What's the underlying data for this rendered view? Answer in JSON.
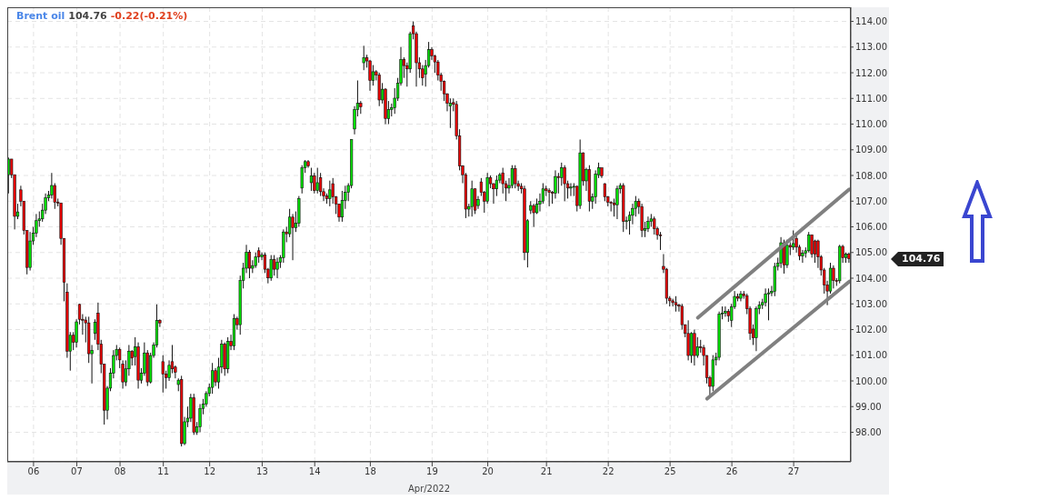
{
  "chart_data": {
    "type": "candlestick",
    "title": "Brent oil",
    "xlabel": "Apr/2022",
    "annotations": [
      "104.76",
      "-0.22(-0.21%)",
      "104.76"
    ],
    "ylim": [
      96.85,
      114.55
    ],
    "yticks": [
      {
        "value": 98,
        "label": "98.00"
      },
      {
        "value": 99,
        "label": "99.00"
      },
      {
        "value": 100,
        "label": "100.00"
      },
      {
        "value": 101,
        "label": "101.00"
      },
      {
        "value": 102,
        "label": "102.00"
      },
      {
        "value": 103,
        "label": "103.00"
      },
      {
        "value": 104,
        "label": "104.00"
      },
      {
        "value": 105,
        "label": "105.00"
      },
      {
        "value": 106,
        "label": "106.00"
      },
      {
        "value": 107,
        "label": "107.00"
      },
      {
        "value": 108,
        "label": "108.00"
      },
      {
        "value": 109,
        "label": "109.00"
      },
      {
        "value": 110,
        "label": "110.00"
      },
      {
        "value": 111,
        "label": "111.00"
      },
      {
        "value": 112,
        "label": "112.00"
      },
      {
        "value": 113,
        "label": "113.00"
      },
      {
        "value": 114,
        "label": "114.00"
      }
    ],
    "grid": true,
    "categories": [
      null,
      null,
      null,
      null,
      null,
      null,
      null,
      null,
      "06",
      null,
      null,
      null,
      null,
      null,
      null,
      null,
      null,
      null,
      null,
      null,
      null,
      null,
      "07",
      null,
      null,
      null,
      null,
      null,
      null,
      null,
      null,
      null,
      null,
      null,
      null,
      null,
      "08",
      null,
      null,
      null,
      null,
      null,
      null,
      null,
      null,
      null,
      null,
      null,
      null,
      null,
      "11",
      null,
      null,
      null,
      null,
      null,
      null,
      null,
      null,
      null,
      null,
      null,
      null,
      null,
      null,
      "12",
      null,
      null,
      null,
      null,
      null,
      null,
      null,
      null,
      null,
      null,
      null,
      null,
      null,
      null,
      null,
      null,
      "13",
      null,
      null,
      null,
      null,
      null,
      null,
      null,
      null,
      null,
      null,
      null,
      null,
      null,
      null,
      null,
      null,
      "14",
      null,
      null,
      null,
      null,
      null,
      null,
      null,
      null,
      null,
      null,
      null,
      null,
      null,
      null,
      null,
      null,
      null,
      "18",
      null,
      null,
      null,
      null,
      null,
      null,
      null,
      null,
      null,
      null,
      null,
      null,
      null,
      null,
      null,
      null,
      null,
      null,
      null,
      "19",
      null,
      null,
      null,
      null,
      null,
      null,
      null,
      null,
      null,
      null,
      null,
      null,
      null,
      null,
      null,
      null,
      null,
      "20",
      null,
      null,
      null,
      null,
      null,
      null,
      null,
      null,
      null,
      null,
      null,
      null,
      null,
      null,
      null,
      null,
      null,
      null,
      "21",
      null,
      null,
      null,
      null,
      null,
      null,
      null,
      null,
      null,
      null,
      null,
      null,
      null,
      null,
      null,
      null,
      null,
      null,
      null,
      "22",
      null,
      null,
      null,
      null,
      null,
      null,
      null,
      null,
      null,
      null,
      null,
      null,
      null,
      null,
      null,
      null,
      null,
      null,
      null,
      "25",
      null,
      null,
      null,
      null,
      null,
      null,
      null,
      null,
      null,
      null,
      null,
      null,
      null,
      null,
      null,
      null,
      null,
      null,
      null,
      "26",
      null,
      null,
      null,
      null,
      null,
      null,
      null,
      null,
      null,
      null,
      null,
      null,
      null,
      null,
      null,
      null,
      null,
      null,
      null,
      "27",
      null,
      null,
      null,
      null,
      null,
      null,
      null,
      null,
      null,
      null,
      null,
      null,
      null,
      null,
      null,
      null,
      null,
      null
    ],
    "ohlc": [
      [
        108.03,
        108.7,
        107.3,
        108.64
      ],
      [
        108.64,
        108.64,
        107.9,
        108.03
      ],
      [
        108.03,
        108.03,
        105.9,
        106.41
      ],
      [
        106.41,
        106.9,
        106.3,
        106.58
      ],
      [
        107.44,
        107.6,
        106.8,
        107.0
      ],
      [
        107.0,
        107.0,
        105.7,
        105.86
      ],
      [
        105.86,
        105.86,
        104.15,
        104.42
      ],
      [
        104.42,
        105.8,
        104.3,
        105.45
      ],
      [
        105.45,
        106.0,
        105.3,
        105.76
      ],
      [
        105.76,
        106.5,
        105.6,
        106.24
      ],
      [
        106.24,
        106.6,
        106.0,
        106.31
      ],
      [
        106.31,
        106.9,
        106.2,
        106.65
      ],
      [
        106.65,
        107.3,
        106.5,
        107.13
      ],
      [
        107.13,
        107.4,
        107.0,
        107.24
      ],
      [
        107.24,
        108.1,
        107.1,
        107.61
      ],
      [
        107.61,
        107.7,
        106.7,
        106.96
      ],
      [
        106.96,
        107.1,
        106.8,
        106.93
      ],
      [
        106.93,
        106.93,
        105.3,
        105.55
      ],
      [
        105.55,
        105.55,
        103.1,
        103.84
      ],
      [
        103.46,
        103.8,
        100.9,
        101.16
      ],
      [
        101.16,
        101.9,
        100.4,
        101.78
      ],
      [
        101.78,
        101.9,
        101.2,
        101.5
      ],
      [
        101.5,
        102.4,
        101.3,
        102.3
      ],
      [
        102.98,
        103.0,
        102.2,
        102.4
      ],
      [
        102.4,
        102.6,
        101.8,
        102.37
      ],
      [
        102.37,
        102.5,
        101.5,
        102.26
      ],
      [
        102.26,
        102.5,
        100.7,
        101.06
      ],
      [
        101.06,
        101.4,
        99.9,
        101.19
      ],
      [
        101.85,
        102.4,
        101.6,
        102.29
      ],
      [
        102.64,
        103.05,
        101.2,
        101.43
      ],
      [
        101.43,
        101.6,
        100.3,
        100.65
      ],
      [
        100.65,
        100.65,
        98.3,
        98.86
      ],
      [
        98.86,
        99.8,
        98.5,
        99.72
      ],
      [
        99.72,
        100.5,
        99.6,
        100.3
      ],
      [
        100.3,
        101.2,
        100.1,
        100.99
      ],
      [
        100.99,
        101.4,
        100.8,
        101.23
      ],
      [
        101.23,
        101.3,
        100.5,
        100.82
      ],
      [
        100.65,
        100.8,
        99.7,
        99.96
      ],
      [
        99.96,
        100.8,
        99.8,
        100.47
      ],
      [
        100.47,
        101.4,
        100.2,
        101.16
      ],
      [
        101.16,
        101.2,
        100.6,
        100.89
      ],
      [
        100.95,
        101.7,
        100.6,
        101.33
      ],
      [
        101.33,
        101.5,
        99.7,
        100.03
      ],
      [
        100.03,
        100.5,
        99.9,
        100.3
      ],
      [
        100.3,
        101.5,
        100.2,
        101.09
      ],
      [
        101.09,
        101.2,
        99.8,
        99.96
      ],
      [
        99.96,
        101.1,
        99.9,
        100.99
      ],
      [
        100.99,
        101.5,
        100.9,
        101.4
      ],
      [
        101.4,
        102.98,
        101.3,
        102.36
      ],
      [
        102.36,
        102.4,
        102.1,
        102.26
      ],
      [
        100.75,
        101.0,
        99.55,
        100.27
      ],
      [
        100.27,
        100.4,
        99.7,
        100.13
      ],
      [
        100.13,
        100.8,
        100.0,
        100.61
      ],
      [
        100.75,
        101.4,
        100.3,
        100.47
      ],
      [
        100.54,
        100.6,
        100.1,
        100.34
      ],
      [
        99.86,
        100.1,
        99.6,
        100.03
      ],
      [
        100.06,
        100.2,
        97.45,
        97.56
      ],
      [
        97.56,
        98.6,
        97.5,
        98.41
      ],
      [
        98.41,
        99.0,
        98.2,
        98.55
      ],
      [
        98.55,
        99.5,
        98.4,
        99.34
      ],
      [
        99.34,
        99.5,
        97.9,
        98.0
      ],
      [
        98.0,
        98.4,
        97.9,
        98.21
      ],
      [
        98.21,
        99.1,
        98.0,
        98.93
      ],
      [
        98.93,
        99.3,
        98.7,
        99.1
      ],
      [
        99.1,
        99.6,
        99.0,
        99.51
      ],
      [
        99.51,
        99.9,
        99.4,
        99.75
      ],
      [
        99.75,
        100.7,
        99.5,
        100.4
      ],
      [
        100.4,
        100.5,
        99.8,
        99.96
      ],
      [
        99.96,
        100.9,
        99.7,
        100.54
      ],
      [
        100.54,
        101.6,
        100.3,
        101.43
      ],
      [
        101.43,
        101.5,
        100.2,
        100.47
      ],
      [
        100.47,
        101.7,
        100.3,
        101.54
      ],
      [
        101.54,
        101.8,
        101.2,
        101.37
      ],
      [
        101.37,
        102.6,
        101.2,
        102.43
      ],
      [
        102.43,
        102.5,
        102.0,
        102.19
      ],
      [
        102.19,
        104.1,
        101.8,
        103.91
      ],
      [
        103.91,
        104.6,
        103.6,
        104.39
      ],
      [
        104.39,
        105.3,
        104.2,
        105.01
      ],
      [
        105.01,
        105.1,
        104.0,
        104.39
      ],
      [
        104.39,
        104.7,
        104.2,
        104.49
      ],
      [
        104.49,
        105.0,
        104.4,
        104.83
      ],
      [
        105.07,
        105.2,
        104.6,
        104.83
      ],
      [
        104.83,
        105.0,
        104.7,
        104.9
      ],
      [
        104.9,
        105.0,
        104.2,
        104.35
      ],
      [
        104.35,
        104.4,
        103.8,
        104.01
      ],
      [
        104.01,
        104.9,
        103.9,
        104.73
      ],
      [
        104.73,
        104.9,
        104.1,
        104.35
      ],
      [
        104.35,
        104.8,
        104.0,
        104.63
      ],
      [
        104.63,
        104.9,
        104.4,
        104.8
      ],
      [
        104.8,
        105.9,
        104.6,
        105.8
      ],
      [
        105.8,
        106.0,
        105.4,
        105.73
      ],
      [
        105.73,
        106.7,
        105.6,
        106.38
      ],
      [
        106.38,
        106.5,
        104.7,
        105.97
      ],
      [
        105.97,
        106.6,
        105.8,
        106.14
      ],
      [
        106.14,
        107.2,
        106.0,
        107.1
      ],
      [
        107.51,
        108.4,
        107.3,
        108.3
      ],
      [
        108.3,
        108.6,
        108.1,
        108.54
      ],
      [
        108.54,
        108.6,
        108.3,
        108.37
      ],
      [
        107.72,
        108.3,
        107.4,
        107.99
      ],
      [
        107.99,
        108.1,
        107.3,
        107.41
      ],
      [
        107.41,
        108.3,
        107.3,
        107.72
      ],
      [
        107.92,
        108.1,
        107.2,
        107.37
      ],
      [
        107.37,
        107.5,
        107.0,
        107.2
      ],
      [
        107.2,
        107.3,
        106.9,
        107.1
      ],
      [
        107.1,
        107.8,
        106.8,
        107.44
      ],
      [
        107.68,
        107.9,
        106.9,
        107.17
      ],
      [
        107.17,
        107.2,
        106.5,
        106.89
      ],
      [
        106.89,
        106.9,
        106.2,
        106.38
      ],
      [
        106.38,
        107.4,
        106.2,
        107.03
      ],
      [
        107.03,
        107.6,
        106.7,
        107.34
      ],
      [
        107.34,
        107.7,
        107.0,
        107.61
      ],
      [
        107.61,
        109.4,
        107.5,
        109.4
      ],
      [
        109.81,
        110.7,
        109.6,
        110.57
      ],
      [
        110.57,
        111.7,
        110.3,
        110.81
      ],
      [
        110.81,
        110.9,
        110.4,
        110.67
      ],
      [
        112.39,
        113.05,
        112.1,
        112.59
      ],
      [
        112.59,
        112.7,
        112.2,
        112.46
      ],
      [
        112.46,
        112.5,
        111.3,
        111.7
      ],
      [
        111.7,
        112.3,
        111.5,
        112.04
      ],
      [
        112.04,
        112.1,
        111.7,
        111.91
      ],
      [
        111.91,
        112.0,
        110.7,
        110.94
      ],
      [
        110.94,
        111.6,
        110.8,
        111.36
      ],
      [
        111.36,
        111.4,
        110.0,
        110.22
      ],
      [
        110.22,
        110.9,
        110.0,
        110.57
      ],
      [
        110.57,
        110.8,
        110.3,
        110.64
      ],
      [
        110.64,
        111.4,
        110.4,
        111.01
      ],
      [
        111.01,
        111.8,
        110.9,
        111.6
      ],
      [
        111.6,
        113.0,
        111.5,
        112.52
      ],
      [
        112.52,
        112.6,
        111.8,
        112.28
      ],
      [
        112.28,
        112.4,
        111.46,
        112.15
      ],
      [
        112.15,
        113.6,
        112.0,
        113.52
      ],
      [
        113.83,
        114.0,
        113.3,
        113.52
      ],
      [
        113.52,
        113.6,
        111.46,
        112.39
      ],
      [
        112.39,
        112.6,
        111.8,
        112.15
      ],
      [
        112.15,
        112.3,
        111.5,
        111.8
      ],
      [
        111.94,
        112.5,
        111.46,
        112.28
      ],
      [
        112.28,
        113.2,
        112.2,
        112.9
      ],
      [
        112.9,
        113.0,
        112.5,
        112.66
      ],
      [
        112.66,
        112.7,
        112.0,
        112.42
      ],
      [
        112.42,
        112.5,
        111.7,
        111.91
      ],
      [
        111.91,
        112.0,
        111.3,
        111.67
      ],
      [
        111.67,
        111.7,
        110.9,
        111.18
      ],
      [
        111.18,
        111.2,
        110.5,
        110.81
      ],
      [
        110.7,
        111.0,
        109.85,
        110.81
      ],
      [
        110.84,
        111.0,
        110.5,
        110.77
      ],
      [
        110.77,
        110.9,
        109.4,
        109.54
      ],
      [
        109.54,
        109.8,
        108.2,
        108.37
      ],
      [
        108.37,
        108.4,
        107.7,
        108.03
      ],
      [
        108.03,
        108.1,
        106.34,
        106.69
      ],
      [
        106.69,
        106.9,
        106.4,
        106.79
      ],
      [
        106.79,
        107.8,
        106.4,
        107.48
      ],
      [
        107.48,
        107.5,
        106.5,
        106.65
      ],
      [
        106.83,
        107.2,
        106.7,
        107.07
      ],
      [
        107.75,
        107.9,
        107.2,
        107.34
      ],
      [
        107.34,
        107.4,
        106.55,
        107.0
      ],
      [
        107.0,
        108.1,
        106.9,
        107.92
      ],
      [
        107.92,
        108.0,
        107.5,
        107.68
      ],
      [
        107.68,
        107.7,
        106.9,
        107.48
      ],
      [
        107.48,
        108.0,
        107.2,
        107.82
      ],
      [
        107.82,
        108.1,
        107.7,
        108.03
      ],
      [
        108.1,
        108.3,
        107.3,
        107.68
      ],
      [
        107.68,
        107.8,
        107.0,
        107.51
      ],
      [
        107.51,
        107.9,
        107.3,
        107.61
      ],
      [
        107.61,
        108.4,
        107.5,
        108.27
      ],
      [
        108.27,
        108.4,
        107.5,
        107.68
      ],
      [
        107.68,
        107.8,
        107.4,
        107.58
      ],
      [
        107.58,
        107.7,
        107.3,
        107.48
      ],
      [
        107.48,
        107.6,
        104.7,
        105.0
      ],
      [
        105.0,
        106.3,
        104.42,
        106.24
      ],
      [
        106.65,
        107.0,
        106.5,
        106.83
      ],
      [
        106.83,
        106.9,
        106.0,
        106.55
      ],
      [
        106.55,
        107.1,
        106.5,
        106.89
      ],
      [
        106.89,
        107.3,
        106.6,
        107.0
      ],
      [
        107.0,
        107.7,
        106.9,
        107.48
      ],
      [
        107.48,
        107.6,
        107.2,
        107.41
      ],
      [
        107.41,
        107.5,
        106.8,
        107.34
      ],
      [
        107.34,
        107.4,
        106.9,
        107.31
      ],
      [
        107.31,
        108.2,
        107.1,
        107.96
      ],
      [
        107.96,
        108.1,
        107.3,
        107.92
      ],
      [
        107.92,
        108.5,
        107.6,
        108.3
      ],
      [
        108.3,
        108.4,
        107.0,
        107.68
      ],
      [
        107.68,
        107.8,
        107.1,
        107.51
      ],
      [
        107.51,
        107.7,
        107.2,
        107.55
      ],
      [
        107.55,
        107.7,
        107.2,
        107.58
      ],
      [
        107.58,
        107.6,
        106.6,
        106.83
      ],
      [
        106.83,
        109.4,
        106.7,
        108.88
      ],
      [
        108.88,
        108.9,
        107.6,
        107.79
      ],
      [
        107.79,
        108.3,
        107.4,
        108.23
      ],
      [
        108.23,
        108.4,
        106.6,
        107.0
      ],
      [
        107.0,
        107.3,
        106.7,
        107.17
      ],
      [
        107.17,
        108.2,
        106.9,
        108.06
      ],
      [
        108.03,
        108.5,
        107.9,
        108.3
      ],
      [
        108.3,
        108.3,
        107.9,
        107.99
      ],
      [
        107.68,
        107.7,
        107.0,
        107.17
      ],
      [
        107.17,
        107.2,
        106.8,
        106.96
      ],
      [
        106.96,
        107.0,
        106.6,
        106.93
      ],
      [
        106.93,
        107.1,
        106.4,
        106.86
      ],
      [
        106.86,
        107.6,
        106.3,
        107.48
      ],
      [
        107.48,
        107.7,
        107.3,
        107.61
      ],
      [
        107.61,
        107.7,
        105.8,
        106.21
      ],
      [
        106.21,
        106.4,
        105.9,
        106.24
      ],
      [
        106.24,
        106.6,
        105.7,
        106.45
      ],
      [
        106.45,
        106.9,
        106.1,
        106.72
      ],
      [
        106.72,
        107.2,
        106.4,
        107.0
      ],
      [
        107.0,
        107.1,
        106.5,
        106.79
      ],
      [
        106.79,
        106.9,
        105.6,
        105.86
      ],
      [
        105.86,
        106.2,
        105.6,
        105.93
      ],
      [
        105.93,
        106.4,
        105.8,
        106.21
      ],
      [
        106.21,
        106.5,
        106.0,
        106.31
      ],
      [
        106.31,
        106.4,
        105.7,
        105.93
      ],
      [
        105.93,
        106.0,
        105.5,
        105.69
      ],
      [
        105.69,
        105.8,
        105.1,
        105.66
      ],
      [
        104.46,
        104.94,
        104.2,
        104.35
      ],
      [
        104.35,
        104.4,
        103.0,
        103.22
      ],
      [
        103.22,
        103.3,
        102.9,
        103.12
      ],
      [
        103.12,
        103.2,
        102.9,
        103.05
      ],
      [
        103.05,
        103.3,
        102.7,
        102.95
      ],
      [
        102.95,
        103.0,
        102.7,
        102.91
      ],
      [
        102.91,
        103.0,
        102.0,
        102.19
      ],
      [
        102.19,
        102.2,
        101.7,
        101.85
      ],
      [
        101.85,
        102.36,
        100.8,
        100.99
      ],
      [
        100.99,
        101.9,
        100.7,
        101.85
      ],
      [
        101.85,
        102.0,
        100.6,
        100.99
      ],
      [
        100.99,
        101.7,
        100.9,
        101.33
      ],
      [
        101.33,
        101.6,
        101.1,
        101.3
      ],
      [
        101.3,
        101.4,
        100.6,
        100.99
      ],
      [
        100.99,
        101.0,
        99.9,
        100.13
      ],
      [
        100.13,
        100.2,
        99.44,
        99.79
      ],
      [
        99.79,
        101.0,
        99.6,
        100.82
      ],
      [
        100.82,
        101.1,
        100.6,
        100.92
      ],
      [
        100.92,
        102.7,
        100.8,
        102.6
      ],
      [
        102.6,
        102.9,
        102.4,
        102.64
      ],
      [
        102.64,
        102.9,
        102.5,
        102.71
      ],
      [
        102.71,
        102.8,
        102.3,
        102.53
      ],
      [
        102.36,
        103.0,
        102.1,
        102.88
      ],
      [
        102.88,
        103.5,
        102.8,
        103.29
      ],
      [
        103.29,
        103.4,
        103.1,
        103.22
      ],
      [
        103.22,
        103.5,
        103.1,
        103.39
      ],
      [
        103.39,
        103.5,
        103.2,
        103.32
      ],
      [
        103.32,
        103.4,
        102.6,
        102.81
      ],
      [
        102.81,
        102.9,
        101.6,
        101.85
      ],
      [
        102.02,
        102.2,
        101.4,
        101.68
      ],
      [
        101.68,
        102.9,
        101.16,
        102.81
      ],
      [
        102.81,
        103.1,
        102.6,
        102.95
      ],
      [
        102.95,
        103.2,
        102.8,
        103.05
      ],
      [
        103.05,
        103.6,
        102.9,
        103.39
      ],
      [
        103.39,
        103.6,
        102.36,
        103.43
      ],
      [
        103.43,
        103.7,
        103.3,
        103.49
      ],
      [
        103.49,
        104.6,
        103.3,
        104.46
      ],
      [
        104.46,
        104.8,
        104.3,
        104.59
      ],
      [
        104.59,
        105.6,
        104.4,
        105.38
      ],
      [
        105.38,
        105.5,
        104.18,
        104.52
      ],
      [
        104.52,
        105.5,
        104.4,
        105.28
      ],
      [
        105.28,
        105.4,
        104.9,
        105.21
      ],
      [
        105.21,
        105.86,
        105.1,
        105.35
      ],
      [
        105.55,
        105.7,
        105.0,
        105.21
      ],
      [
        105.21,
        105.3,
        104.7,
        104.87
      ],
      [
        104.87,
        105.1,
        104.6,
        104.97
      ],
      [
        104.97,
        105.2,
        104.8,
        105.07
      ],
      [
        105.07,
        105.8,
        105.0,
        105.69
      ],
      [
        105.69,
        105.7,
        104.8,
        104.94
      ],
      [
        105.45,
        105.5,
        104.6,
        104.94
      ],
      [
        105.45,
        105.5,
        104.4,
        104.83
      ],
      [
        104.83,
        104.9,
        104.1,
        104.32
      ],
      [
        104.32,
        104.4,
        103.4,
        103.74
      ],
      [
        103.74,
        103.9,
        102.95,
        103.5
      ],
      [
        103.5,
        104.6,
        103.4,
        104.39
      ],
      [
        104.39,
        104.5,
        103.6,
        103.91
      ],
      [
        103.91,
        104.0,
        103.7,
        103.9
      ],
      [
        103.9,
        105.3,
        103.8,
        105.24
      ],
      [
        105.24,
        105.3,
        104.6,
        104.8
      ],
      [
        104.8,
        105.0,
        104.6,
        104.94
      ],
      [
        104.94,
        105.0,
        104.6,
        104.76
      ]
    ],
    "series": [
      {
        "type": "line",
        "color": "#808080",
        "values": [
          null,
          null,
          null,
          null,
          null,
          null,
          null,
          null,
          null,
          null,
          null,
          null,
          null,
          null,
          null,
          null,
          null,
          null,
          null,
          null,
          null,
          null,
          null,
          null,
          null,
          null,
          null,
          null,
          null,
          null,
          null,
          null,
          null,
          null,
          null,
          null,
          null,
          null,
          null,
          null,
          null,
          null,
          null,
          null,
          null,
          null,
          null,
          null,
          null,
          null,
          null,
          null,
          null,
          null,
          null,
          null,
          null,
          null,
          null,
          null,
          null,
          null,
          null,
          null,
          null,
          null,
          null,
          null,
          null,
          null,
          null,
          null,
          null,
          null,
          null,
          null,
          null,
          null,
          null,
          null,
          null,
          null,
          null,
          null,
          null,
          null,
          null,
          null,
          null,
          null,
          null,
          null,
          null,
          null,
          null,
          null,
          null,
          null,
          null,
          null,
          null,
          null,
          null,
          null,
          null,
          null,
          null,
          null,
          null,
          null,
          null,
          null,
          null,
          null,
          null,
          null,
          null,
          null,
          null,
          null,
          null,
          null,
          null,
          null,
          null,
          null,
          null,
          null,
          null,
          null,
          null,
          null,
          null,
          null,
          null,
          null,
          null,
          null,
          null,
          null,
          null,
          null,
          null,
          null,
          null,
          null,
          null,
          null,
          null,
          null,
          null,
          null,
          null,
          null,
          null,
          null,
          null,
          null,
          null,
          null,
          null,
          null,
          null,
          null,
          null,
          null,
          null,
          null,
          null,
          null,
          null,
          null,
          null,
          null,
          null,
          null,
          null,
          null,
          null,
          null,
          null,
          null,
          null,
          null,
          null,
          null,
          null,
          null,
          null,
          null,
          null,
          null,
          null,
          null,
          null,
          null,
          null,
          null,
          null,
          null,
          null,
          null,
          null,
          null,
          null,
          null,
          null,
          null,
          null,
          null,
          null,
          null,
          null,
          null,
          null,
          null,
          null,
          null,
          null,
          null,
          null,
          null,
          null,
          102.46,
          null,
          null,
          null,
          null,
          null,
          null,
          null,
          null,
          null,
          null,
          null,
          null,
          null,
          null,
          null,
          null,
          null,
          null,
          null,
          null,
          null,
          null,
          null,
          null,
          null,
          null,
          null,
          null,
          null,
          null,
          null,
          null,
          null,
          null,
          null,
          null,
          null,
          null,
          null,
          null,
          null,
          null,
          null,
          null,
          null,
          null,
          null,
          null,
          107.46
        ]
      },
      {
        "type": "line",
        "color": "#808080",
        "values": [
          null,
          null,
          null,
          null,
          null,
          null,
          null,
          null,
          null,
          null,
          null,
          null,
          null,
          null,
          null,
          null,
          null,
          null,
          null,
          null,
          null,
          null,
          null,
          null,
          null,
          null,
          null,
          null,
          null,
          null,
          null,
          null,
          null,
          null,
          null,
          null,
          null,
          null,
          null,
          null,
          null,
          null,
          null,
          null,
          null,
          null,
          null,
          null,
          null,
          null,
          null,
          null,
          null,
          null,
          null,
          null,
          null,
          null,
          null,
          null,
          null,
          null,
          null,
          null,
          null,
          null,
          null,
          null,
          null,
          null,
          null,
          null,
          null,
          null,
          null,
          null,
          null,
          null,
          null,
          null,
          null,
          null,
          null,
          null,
          null,
          null,
          null,
          null,
          null,
          null,
          null,
          null,
          null,
          null,
          null,
          null,
          null,
          null,
          null,
          null,
          null,
          null,
          null,
          null,
          null,
          null,
          null,
          null,
          null,
          null,
          null,
          null,
          null,
          null,
          null,
          null,
          null,
          null,
          null,
          null,
          null,
          null,
          null,
          null,
          null,
          null,
          null,
          null,
          null,
          null,
          null,
          null,
          null,
          null,
          null,
          null,
          null,
          null,
          null,
          null,
          null,
          null,
          null,
          null,
          null,
          null,
          null,
          null,
          null,
          null,
          null,
          null,
          null,
          null,
          null,
          null,
          null,
          null,
          null,
          null,
          null,
          null,
          null,
          null,
          null,
          null,
          null,
          null,
          null,
          null,
          null,
          null,
          null,
          null,
          null,
          null,
          null,
          null,
          null,
          null,
          null,
          null,
          null,
          null,
          null,
          null,
          null,
          null,
          null,
          null,
          null,
          null,
          null,
          null,
          null,
          null,
          null,
          null,
          null,
          null,
          null,
          null,
          null,
          null,
          null,
          null,
          null,
          null,
          null,
          null,
          null,
          null,
          null,
          null,
          null,
          null,
          null,
          null,
          null,
          null,
          null,
          null,
          null,
          null,
          null,
          null,
          99.31,
          null,
          null,
          null,
          null,
          null,
          null,
          null,
          null,
          null,
          null,
          null,
          null,
          null,
          null,
          null,
          null,
          null,
          null,
          null,
          null,
          null,
          null,
          null,
          null,
          null,
          null,
          null,
          null,
          null,
          null,
          null,
          null,
          null,
          null,
          null,
          null,
          null,
          null,
          null,
          null,
          null,
          null,
          null,
          null,
          null,
          103.87
        ]
      }
    ]
  }
}
